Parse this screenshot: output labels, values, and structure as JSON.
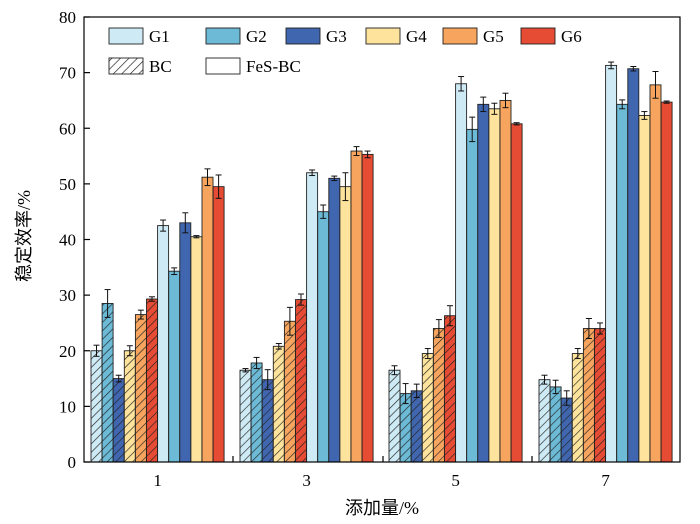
{
  "chart_data": {
    "type": "bar",
    "categories": [
      "1",
      "3",
      "5",
      "7"
    ],
    "xlabel": "添加量/%",
    "ylabel": "稳定效率/%",
    "ylim": [
      0,
      80
    ],
    "yticks": [
      "0",
      "10",
      "20",
      "30",
      "40",
      "50",
      "60",
      "70",
      "80"
    ],
    "grid": false,
    "legend_position": "top",
    "colors": {
      "G1": "#cdeaf5",
      "G2": "#6cbad6",
      "G3": "#4166b0",
      "G4": "#fde39b",
      "G5": "#f7a55e",
      "G6": "#e64b34"
    },
    "legend": {
      "groups": [
        "G1",
        "G2",
        "G3",
        "G4",
        "G5",
        "G6"
      ],
      "materials": [
        "BC",
        "FeS-BC"
      ]
    },
    "series": [
      {
        "group": "G1",
        "material": "BC",
        "values": [
          20.0,
          16.5,
          16.5,
          14.8
        ],
        "errors": [
          1.0,
          0.3,
          0.8,
          0.8
        ]
      },
      {
        "group": "G2",
        "material": "BC",
        "values": [
          28.5,
          17.8,
          12.3,
          13.5
        ],
        "errors": [
          2.5,
          1.0,
          1.8,
          1.2
        ]
      },
      {
        "group": "G3",
        "material": "BC",
        "values": [
          15.0,
          14.8,
          12.8,
          11.5
        ],
        "errors": [
          0.6,
          1.8,
          1.2,
          1.3
        ]
      },
      {
        "group": "G4",
        "material": "BC",
        "values": [
          20.0,
          20.8,
          19.5,
          19.5
        ],
        "errors": [
          0.9,
          0.5,
          0.9,
          0.9
        ]
      },
      {
        "group": "G5",
        "material": "BC",
        "values": [
          26.5,
          25.3,
          24.0,
          24.0
        ],
        "errors": [
          0.8,
          2.5,
          1.6,
          1.8
        ]
      },
      {
        "group": "G6",
        "material": "BC",
        "values": [
          29.3,
          29.2,
          26.3,
          24.0
        ],
        "errors": [
          0.4,
          1.0,
          1.8,
          1.0
        ]
      },
      {
        "group": "G1",
        "material": "FeS-BC",
        "values": [
          42.5,
          52.0,
          68.0,
          71.3
        ],
        "errors": [
          1.0,
          0.5,
          1.3,
          0.6
        ]
      },
      {
        "group": "G2",
        "material": "FeS-BC",
        "values": [
          34.3,
          45.0,
          59.8,
          64.3
        ],
        "errors": [
          0.6,
          1.2,
          2.2,
          0.8
        ]
      },
      {
        "group": "G3",
        "material": "FeS-BC",
        "values": [
          43.0,
          51.0,
          64.3,
          70.7
        ],
        "errors": [
          1.8,
          0.4,
          1.3,
          0.4
        ]
      },
      {
        "group": "G4",
        "material": "FeS-BC",
        "values": [
          40.5,
          49.5,
          63.5,
          62.3
        ],
        "errors": [
          0.2,
          2.5,
          1.0,
          0.7
        ]
      },
      {
        "group": "G5",
        "material": "FeS-BC",
        "values": [
          51.2,
          55.9,
          65.0,
          67.8
        ],
        "errors": [
          1.5,
          0.8,
          1.3,
          2.4
        ]
      },
      {
        "group": "G6",
        "material": "FeS-BC",
        "values": [
          49.5,
          55.3,
          60.8,
          64.7
        ],
        "errors": [
          2.1,
          0.6,
          0.2,
          0.2
        ]
      }
    ]
  }
}
